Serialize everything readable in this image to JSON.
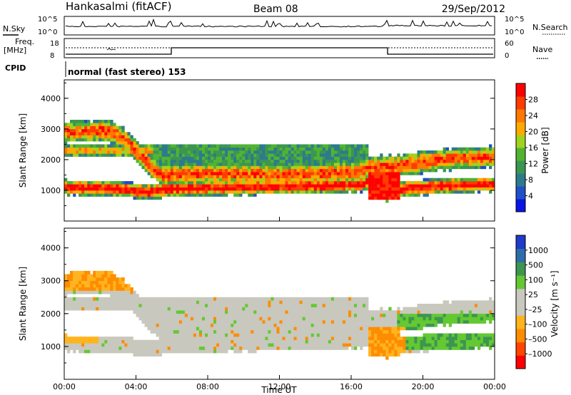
{
  "header": {
    "station": "Hankasalmi (fitACF)",
    "beam": "Beam 08",
    "date": "29/Sep/2012"
  },
  "noise_panel": {
    "left_label": "N.Sky",
    "right_label": "N.Search",
    "left_ticks": [
      "10^5",
      "10^0"
    ],
    "right_ticks": [
      "10^5",
      "10^0"
    ]
  },
  "freq_panel": {
    "left_label_1": "Freq.",
    "left_label_2": "[MHz]",
    "left_ticks": [
      "18",
      "8"
    ],
    "right_label": "Nave",
    "right_ticks": [
      "60",
      "0"
    ]
  },
  "cpid": {
    "label": "CPID",
    "text": "normal (fast stereo) 153"
  },
  "colors": {
    "power_scale": [
      "#0a14e6",
      "#1e50c8",
      "#2d7a8c",
      "#3c9650",
      "#50b432",
      "#a0d21e",
      "#ffaa00",
      "#ff7800",
      "#ff3c00",
      "#ff0000"
    ],
    "velocity_scale": [
      "#ff0000",
      "#ff4600",
      "#ff8c00",
      "#ffb41e",
      "#c8c8be",
      "#c8c8be",
      "#64c832",
      "#3c9650",
      "#2d6eaa",
      "#1e3cc8"
    ]
  },
  "chart_data": [
    {
      "type": "heatmap",
      "name": "Power",
      "ylabel": "Slant Range [km]",
      "ylim": [
        0,
        4600
      ],
      "yticks": [
        "1000",
        "2000",
        "3000",
        "4000"
      ],
      "xlim": [
        0,
        24
      ],
      "colorbar": {
        "label": "Power [dB]",
        "ticks": [
          "4",
          "8",
          "12",
          "16",
          "20",
          "24",
          "28"
        ],
        "range": [
          0,
          32
        ]
      }
    },
    {
      "type": "heatmap",
      "name": "Velocity",
      "ylabel": "Slant Range [km]",
      "ylim": [
        0,
        4600
      ],
      "yticks": [
        "1000",
        "2000",
        "3000",
        "4000"
      ],
      "xlim": [
        0,
        24
      ],
      "xlabel": "Time UT",
      "xticks": [
        "00:00",
        "04:00",
        "08:00",
        "12:00",
        "16:00",
        "20:00",
        "00:00"
      ],
      "colorbar": {
        "label": "Velocity [m s⁻¹]",
        "ticks": [
          "1000",
          "500",
          "100",
          "25",
          "–25",
          "–100",
          "–500",
          "–1000"
        ]
      }
    }
  ]
}
